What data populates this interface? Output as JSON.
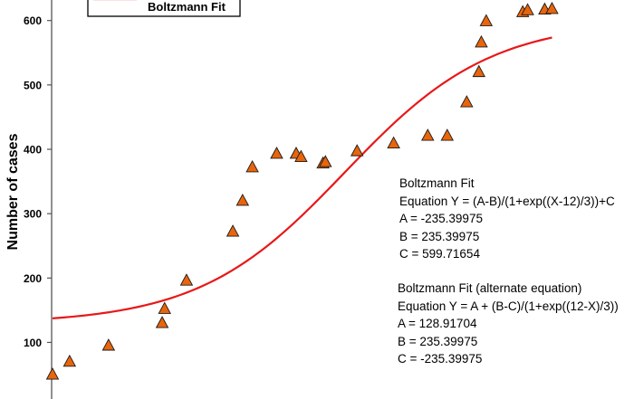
{
  "chart_data": {
    "type": "scatter",
    "ylabel": "Number of cases",
    "ylim": [
      0,
      640
    ],
    "yticks": [
      100,
      200,
      300,
      400,
      500,
      600
    ],
    "xlim": [
      0,
      23.5
    ],
    "grid": false,
    "legend": {
      "placement": "top-left",
      "entries": [
        "Boltzmann Fit"
      ]
    },
    "series": [
      {
        "kind": "markers",
        "marker": "triangle",
        "color": "#E8650C",
        "x": [
          0,
          0.7,
          2.3,
          4.5,
          4.6,
          5.5,
          7.4,
          7.8,
          8.2,
          9.2,
          10.0,
          10.2,
          11.1,
          11.2,
          12.5,
          14.0,
          15.4,
          16.2,
          17.0,
          17.5,
          17.6,
          17.8,
          19.3,
          19.5,
          20.2,
          20.5
        ],
        "y": [
          50,
          70,
          95,
          130,
          152,
          196,
          272,
          320,
          372,
          393,
          393,
          388,
          378,
          380,
          397,
          409,
          421,
          421,
          473,
          520,
          566,
          599,
          613,
          616,
          617,
          618
        ]
      },
      {
        "name": "Boltzmann Fit",
        "kind": "line",
        "color": "#E81818",
        "model": "boltzmann",
        "params": {
          "A": -235.39975,
          "B": 235.39975,
          "C": 599.71654,
          "x0": 12,
          "dx": 3
        },
        "x_range": [
          0,
          20.5
        ]
      }
    ]
  },
  "annotations": {
    "fit1": {
      "title": "Boltzmann Fit",
      "equation": "Equation Y = (A-B)/(1+exp((X-12)/3))+C",
      "a": "A = -235.39975",
      "b": "B = 235.39975",
      "c": "C = 599.71654"
    },
    "fit2": {
      "title": "Boltzmann Fit (alternate equation)",
      "equation": "Equation Y = A + (B-C)/(1+exp((12-X)/3))",
      "a": "A = 128.91704",
      "b": "B = 235.39975",
      "c": "C = -235.39975"
    }
  },
  "colors": {
    "marker_fill": "#E8650C",
    "marker_stroke": "#1a1a1a",
    "fit_line": "#E81818",
    "axis": "#555555"
  }
}
